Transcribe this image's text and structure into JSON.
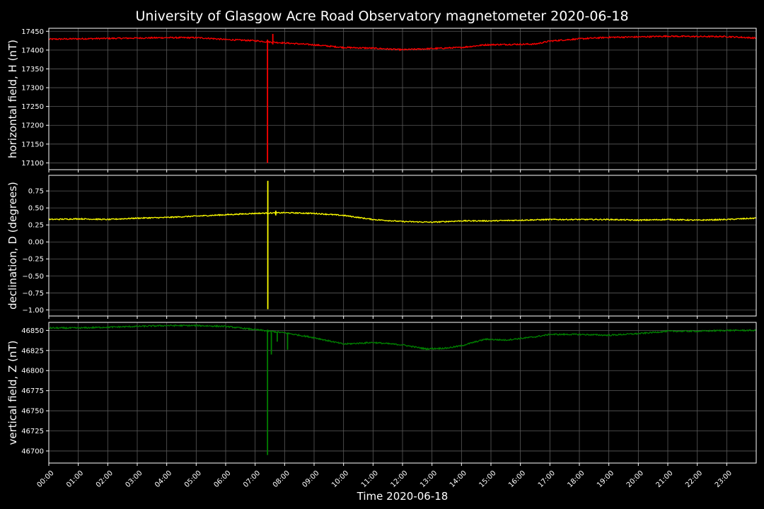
{
  "chart_data": {
    "type": "line",
    "title": "University of Glasgow Acre Road Observatory magnetometer 2020-06-18",
    "xlabel": "Time 2020-06-18",
    "x_ticks": [
      "00:00",
      "01:00",
      "02:00",
      "03:00",
      "04:00",
      "05:00",
      "06:00",
      "07:00",
      "08:00",
      "09:00",
      "10:00",
      "11:00",
      "12:00",
      "13:00",
      "14:00",
      "15:00",
      "16:00",
      "17:00",
      "18:00",
      "19:00",
      "20:00",
      "21:00",
      "22:00",
      "23:00"
    ],
    "xlim_hours": [
      0,
      24
    ],
    "grid": true,
    "panels": [
      {
        "ylabel": "horizontal field, H (nT)",
        "color": "#ff0000",
        "ylim": [
          17082,
          17458
        ],
        "yticks": [
          17100,
          17150,
          17200,
          17250,
          17300,
          17350,
          17400,
          17450
        ],
        "ytick_labels": [
          "17100",
          "17150",
          "17200",
          "17250",
          "17300",
          "17350",
          "17400",
          "17450"
        ],
        "points": [
          [
            0,
            17429
          ],
          [
            1,
            17430
          ],
          [
            2,
            17431
          ],
          [
            3,
            17432
          ],
          [
            4,
            17433
          ],
          [
            5,
            17433
          ],
          [
            5.5,
            17431
          ],
          [
            6,
            17428
          ],
          [
            7,
            17425
          ],
          [
            7.4,
            17422
          ],
          [
            8,
            17419
          ],
          [
            9,
            17414
          ],
          [
            10,
            17407
          ],
          [
            11,
            17405
          ],
          [
            12,
            17401
          ],
          [
            13,
            17404
          ],
          [
            14,
            17407
          ],
          [
            14.8,
            17414
          ],
          [
            15.5,
            17415
          ],
          [
            16.5,
            17416
          ],
          [
            17,
            17424
          ],
          [
            18,
            17430
          ],
          [
            19,
            17434
          ],
          [
            20,
            17435
          ],
          [
            21,
            17437
          ],
          [
            22,
            17436
          ],
          [
            23,
            17436
          ],
          [
            24,
            17432
          ]
        ],
        "spikes": [
          {
            "hour": 7.42,
            "low": 17100,
            "high": 17428
          },
          {
            "hour": 7.6,
            "low": 17415,
            "high": 17443
          }
        ]
      },
      {
        "ylabel": "declination, D (degrees)",
        "color": "#ffff00",
        "ylim": [
          -1.09,
          0.98
        ],
        "yticks": [
          -1.0,
          -0.75,
          -0.5,
          -0.25,
          0.0,
          0.25,
          0.5,
          0.75
        ],
        "ytick_labels": [
          "−1.00",
          "−0.75",
          "−0.50",
          "−0.25",
          "0.00",
          "0.25",
          "0.50",
          "0.75"
        ],
        "points": [
          [
            0,
            0.33
          ],
          [
            1,
            0.34
          ],
          [
            2,
            0.33
          ],
          [
            3,
            0.35
          ],
          [
            4,
            0.36
          ],
          [
            5,
            0.38
          ],
          [
            6,
            0.4
          ],
          [
            7,
            0.42
          ],
          [
            8,
            0.43
          ],
          [
            9,
            0.42
          ],
          [
            10,
            0.39
          ],
          [
            11,
            0.33
          ],
          [
            12,
            0.3
          ],
          [
            13,
            0.29
          ],
          [
            14,
            0.31
          ],
          [
            15,
            0.31
          ],
          [
            16,
            0.32
          ],
          [
            17,
            0.33
          ],
          [
            18,
            0.33
          ],
          [
            19,
            0.33
          ],
          [
            20,
            0.32
          ],
          [
            21,
            0.33
          ],
          [
            22,
            0.32
          ],
          [
            23,
            0.33
          ],
          [
            24,
            0.35
          ]
        ],
        "spikes": [
          {
            "hour": 7.43,
            "low": -0.99,
            "high": 0.9
          },
          {
            "hour": 7.7,
            "low": 0.39,
            "high": 0.46
          }
        ]
      },
      {
        "ylabel": "vertical field, Z (nT)",
        "color": "#008000",
        "ylim": [
          46685,
          46860
        ],
        "yticks": [
          46700,
          46725,
          46750,
          46775,
          46800,
          46825,
          46850
        ],
        "ytick_labels": [
          "46700",
          "46725",
          "46750",
          "46775",
          "46800",
          "46825",
          "46850"
        ],
        "points": [
          [
            0,
            46853
          ],
          [
            1,
            46853
          ],
          [
            2,
            46854
          ],
          [
            3,
            46855
          ],
          [
            4,
            46856
          ],
          [
            5,
            46856
          ],
          [
            6,
            46855
          ],
          [
            7,
            46851
          ],
          [
            8,
            46847
          ],
          [
            9,
            46841
          ],
          [
            10,
            46833
          ],
          [
            11,
            46835
          ],
          [
            12,
            46832
          ],
          [
            12.8,
            46827
          ],
          [
            13.5,
            46828
          ],
          [
            14,
            46831
          ],
          [
            14.8,
            46839
          ],
          [
            15.5,
            46838
          ],
          [
            16,
            46840
          ],
          [
            16.5,
            46842
          ],
          [
            17,
            46845
          ],
          [
            18,
            46845
          ],
          [
            19,
            46844
          ],
          [
            20,
            46846
          ],
          [
            21,
            46849
          ],
          [
            22,
            46849
          ],
          [
            23,
            46850
          ],
          [
            24,
            46850
          ]
        ],
        "spikes": [
          {
            "hour": 7.42,
            "low": 46695,
            "high": 46851
          },
          {
            "hour": 7.55,
            "low": 46820,
            "high": 46848
          },
          {
            "hour": 7.75,
            "low": 46836,
            "high": 46848
          },
          {
            "hour": 8.1,
            "low": 46826,
            "high": 46846
          }
        ]
      }
    ]
  }
}
